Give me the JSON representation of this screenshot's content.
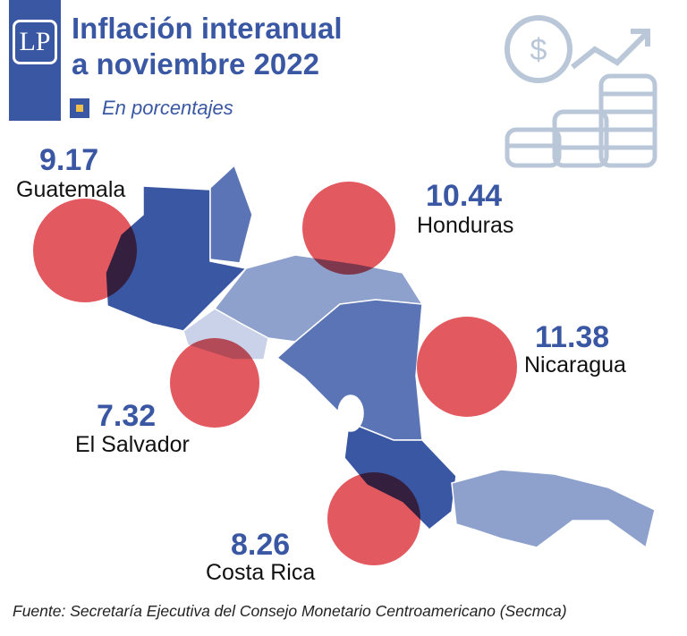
{
  "header": {
    "logo_text": "LP",
    "title_line1": "Inflación interanual",
    "title_line2": "a noviembre 2022",
    "subtitle": "En porcentajes"
  },
  "icon": "money-growth-icon",
  "colors": {
    "accent": "#3a57a3",
    "bubble": "#e0474f",
    "legend": "#f0c04a"
  },
  "chart_data": {
    "type": "bubble-map",
    "title": "Inflación interanual a noviembre 2022",
    "unit": "En porcentajes",
    "points": [
      {
        "country": "Guatemala",
        "value": "9.17"
      },
      {
        "country": "Honduras",
        "value": "10.44"
      },
      {
        "country": "Nicaragua",
        "value": "11.38"
      },
      {
        "country": "El Salvador",
        "value": "7.32"
      },
      {
        "country": "Costa Rica",
        "value": "8.26"
      }
    ]
  },
  "source": "Fuente: Secretaría Ejecutiva del Consejo Monetario Centroamericano (Secmca)"
}
